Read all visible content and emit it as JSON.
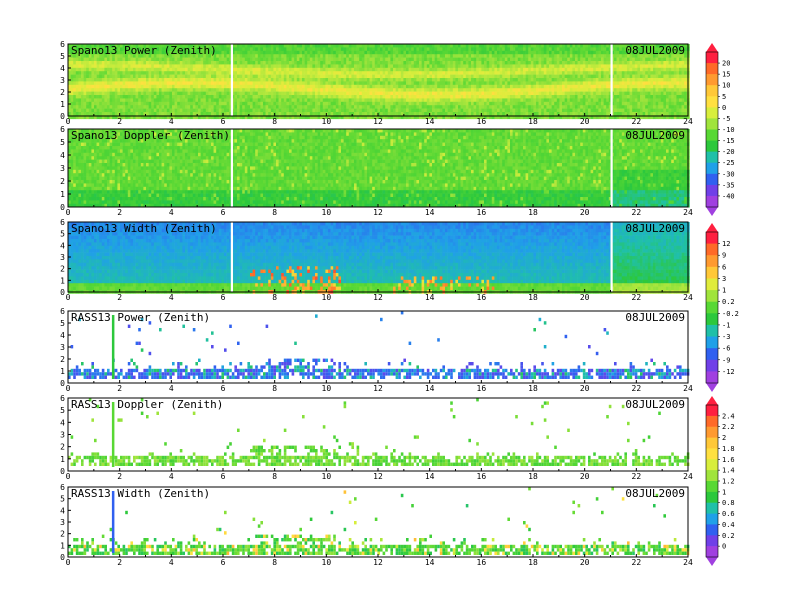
{
  "chart_data": [
    {
      "type": "heatmap",
      "title": "Spano13 Power (Zenith)",
      "date": "08JUL2009",
      "x_ticks": [
        "0",
        "2",
        "4",
        "6",
        "8",
        "10",
        "12",
        "14",
        "16",
        "18",
        "20",
        "22",
        "24"
      ],
      "y_ticks": [
        "0",
        "1",
        "2",
        "3",
        "4",
        "5",
        "6"
      ],
      "xlim": [
        0,
        24
      ],
      "ylim": [
        0,
        6
      ],
      "data_gaps_x": [
        6.3,
        21.0
      ],
      "colorbar": "A",
      "mode": "power"
    },
    {
      "type": "heatmap",
      "title": "Spano13 Doppler (Zenith)",
      "date": "08JUL2009",
      "x_ticks": [
        "0",
        "2",
        "4",
        "6",
        "8",
        "10",
        "12",
        "14",
        "16",
        "18",
        "20",
        "22",
        "24"
      ],
      "y_ticks": [
        "0",
        "1",
        "2",
        "3",
        "4",
        "5",
        "6"
      ],
      "xlim": [
        0,
        24
      ],
      "ylim": [
        0,
        6
      ],
      "data_gaps_x": [
        6.3,
        21.0
      ],
      "colorbar": "A",
      "mode": "sdoppler"
    },
    {
      "type": "heatmap",
      "title": "Spano13 Width (Zenith)",
      "date": "08JUL2009",
      "x_ticks": [
        "0",
        "2",
        "4",
        "6",
        "8",
        "10",
        "12",
        "14",
        "16",
        "18",
        "20",
        "22",
        "24"
      ],
      "y_ticks": [
        "0",
        "1",
        "2",
        "3",
        "4",
        "5",
        "6"
      ],
      "xlim": [
        0,
        24
      ],
      "ylim": [
        0,
        6
      ],
      "data_gaps_x": [
        6.3,
        21.0
      ],
      "colorbar": "B",
      "mode": "swidth"
    },
    {
      "type": "heatmap",
      "title": "RASS13 Power (Zenith)",
      "date": "08JUL2009",
      "x_ticks": [
        "0",
        "2",
        "4",
        "6",
        "8",
        "10",
        "12",
        "14",
        "16",
        "18",
        "20",
        "22",
        "24"
      ],
      "y_ticks": [
        "0",
        "1",
        "2",
        "3",
        "4",
        "5",
        "6"
      ],
      "xlim": [
        0,
        24
      ],
      "ylim": [
        0,
        6
      ],
      "colorbar": "B",
      "mode": "rpower"
    },
    {
      "type": "heatmap",
      "title": "RASS13 Doppler (Zenith)",
      "date": "08JUL2009",
      "x_ticks": [
        "0",
        "2",
        "4",
        "6",
        "8",
        "10",
        "12",
        "14",
        "16",
        "18",
        "20",
        "22",
        "24"
      ],
      "y_ticks": [
        "0",
        "1",
        "2",
        "3",
        "4",
        "5",
        "6"
      ],
      "xlim": [
        0,
        24
      ],
      "ylim": [
        0,
        6
      ],
      "colorbar": "C",
      "mode": "rdoppler"
    },
    {
      "type": "heatmap",
      "title": "RASS13 Width (Zenith)",
      "date": "08JUL2009",
      "x_ticks": [
        "0",
        "2",
        "4",
        "6",
        "8",
        "10",
        "12",
        "14",
        "16",
        "18",
        "20",
        "22",
        "24"
      ],
      "y_ticks": [
        "0",
        "1",
        "2",
        "3",
        "4",
        "5",
        "6"
      ],
      "xlim": [
        0,
        24
      ],
      "ylim": [
        0,
        6
      ],
      "colorbar": "C",
      "mode": "rwidth"
    }
  ],
  "colorbars": {
    "A": {
      "labels": [
        "20",
        "15",
        "10",
        "5",
        "0",
        "-5",
        "-10",
        "-15",
        "-20",
        "-25",
        "-30",
        "-35",
        "-40"
      ],
      "colors": [
        "#ff2040",
        "#ff6a28",
        "#ff9a30",
        "#ffc838",
        "#ffe040",
        "#d8ee3c",
        "#a0e43c",
        "#58d834",
        "#2cc83c",
        "#20c0a8",
        "#20a0e8",
        "#3060f0",
        "#7040e8",
        "#a040e0"
      ]
    },
    "B": {
      "labels": [
        "12",
        "9",
        "6",
        "3",
        "1",
        "0.2",
        "-0.2",
        "-1",
        "-3",
        "-6",
        "-9",
        "-12"
      ],
      "colors": [
        "#ff2040",
        "#ff6a28",
        "#ff9a30",
        "#ffc838",
        "#e0ec3c",
        "#a0e43c",
        "#58d834",
        "#2cc83c",
        "#20c0a8",
        "#20a0e8",
        "#3060f0",
        "#7040e8",
        "#a040e0"
      ]
    },
    "C": {
      "labels": [
        "2.4",
        "2.2",
        "2",
        "1.8",
        "1.6",
        "1.4",
        "1.2",
        "1",
        "0.8",
        "0.6",
        "0.4",
        "0.2",
        "0"
      ],
      "colors": [
        "#ff2040",
        "#ff6a28",
        "#ff9a30",
        "#ffc838",
        "#ffe040",
        "#d8ee3c",
        "#a0e43c",
        "#58d834",
        "#2cc83c",
        "#20c0a8",
        "#20a0e8",
        "#3060f0",
        "#7040e8",
        "#a040e0"
      ]
    }
  }
}
